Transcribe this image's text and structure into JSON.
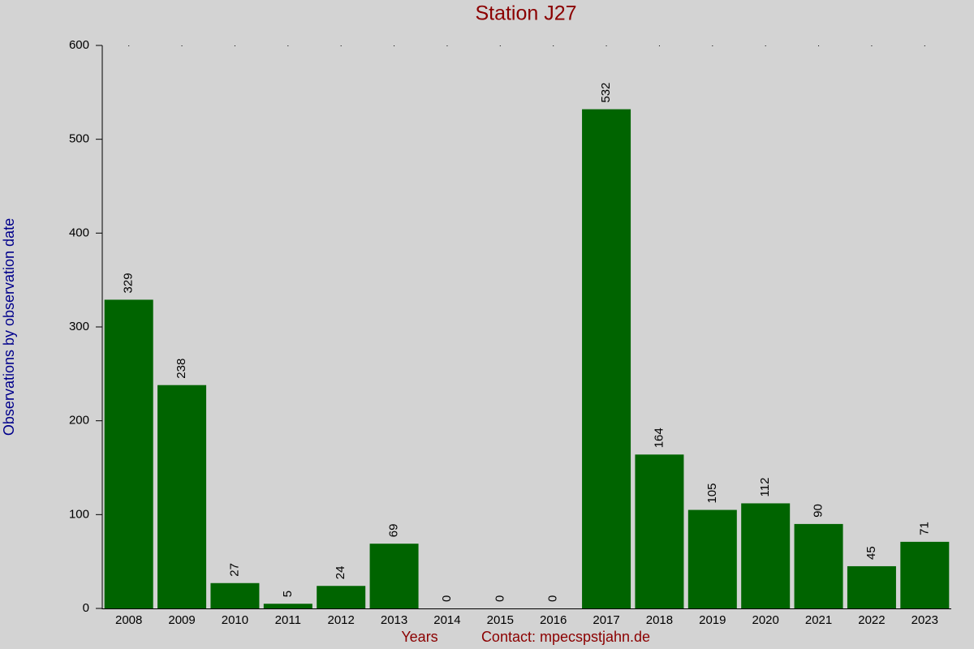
{
  "chart_data": {
    "type": "bar",
    "title": "Station J27",
    "xlabel": "Years",
    "ylabel": "Observations by observation date",
    "annotation": "Contact: mpecspstjahn.de",
    "categories": [
      "2008",
      "2009",
      "2010",
      "2011",
      "2012",
      "2013",
      "2014",
      "2015",
      "2016",
      "2017",
      "2018",
      "2019",
      "2020",
      "2021",
      "2022",
      "2023"
    ],
    "values": [
      329,
      238,
      27,
      5,
      24,
      69,
      0,
      0,
      0,
      532,
      164,
      105,
      112,
      90,
      45,
      71
    ],
    "color": "#006400",
    "ylim": [
      0,
      600
    ],
    "yticks": [
      0,
      100,
      200,
      300,
      400,
      500,
      600
    ],
    "grid": false
  }
}
